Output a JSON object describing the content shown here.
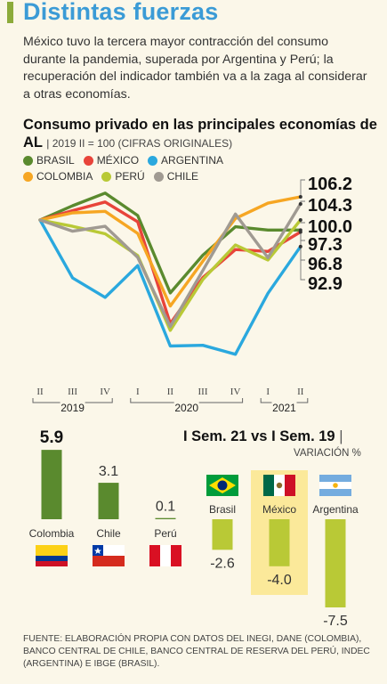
{
  "header": {
    "title": "Distintas fuerzas",
    "intro": "México tuvo la tercera mayor contracción del consumo durante la pandemia, superada por Argentina y Perú; la recuperación del indicador también va a la zaga al considerar a otras economías."
  },
  "colors": {
    "brasil": "#5a8a2e",
    "mexico": "#e8443a",
    "argentina": "#2aa8de",
    "colombia": "#f6a623",
    "peru": "#b9c936",
    "chile": "#a09a92",
    "accent_green": "#8cab3a",
    "headline_blue": "#3b9bd6",
    "mexico_highlight": "#fbe99a"
  },
  "chart_data": [
    {
      "type": "line",
      "title": "Consumo privado en las principales economías de AL",
      "subtitle": "2019 II = 100 (CIFRAS ORIGINALES)",
      "x": [
        "II",
        "III",
        "IV",
        "I",
        "II",
        "III",
        "IV",
        "I",
        "II"
      ],
      "year_labels": [
        {
          "label": "2019",
          "start": 0,
          "end": 2
        },
        {
          "label": "2020",
          "start": 3,
          "end": 6
        },
        {
          "label": "2021",
          "start": 7,
          "end": 8
        }
      ],
      "series": [
        {
          "name": "BRASIL",
          "key": "brasil",
          "values": [
            100,
            103.8,
            107.2,
            101.2,
            80.5,
            90.6,
            98.2,
            97.3,
            97.3
          ]
        },
        {
          "name": "MÉXICO",
          "key": "mexico",
          "values": [
            100,
            102.5,
            104.8,
            99.5,
            72.3,
            84.6,
            92.1,
            91.6,
            96.8
          ]
        },
        {
          "name": "ARGENTINA",
          "key": "argentina",
          "values": [
            100,
            84.5,
            79.3,
            87.8,
            66.3,
            66.5,
            64.1,
            80.4,
            92.9
          ]
        },
        {
          "name": "COLOMBIA",
          "key": "colombia",
          "values": [
            100,
            101.9,
            102.3,
            96.4,
            77.0,
            89.0,
            100.4,
            104.5,
            106.2
          ]
        },
        {
          "name": "PERÚ",
          "key": "peru",
          "values": [
            100,
            98.3,
            96.3,
            90.5,
            70.5,
            84.1,
            93.3,
            89.3,
            100.0
          ]
        },
        {
          "name": "CHILE",
          "key": "chile",
          "values": [
            100,
            97.0,
            98.3,
            90.0,
            71.5,
            86.5,
            101.6,
            89.9,
            104.3
          ]
        }
      ],
      "end_labels": [
        "106.2",
        "104.3",
        "100.0",
        "97.3",
        "96.8",
        "92.9"
      ],
      "ylim": [
        60,
        110
      ],
      "grid": false,
      "legend": "top-left"
    },
    {
      "type": "bar",
      "title": "I Sem. 21 vs I Sem. 19",
      "subtitle": "VARIACIÓN %",
      "categories": [
        "Colombia",
        "Chile",
        "Perú",
        "Brasil",
        "México",
        "Argentina"
      ],
      "values": [
        5.9,
        3.1,
        0.1,
        -2.6,
        -4.0,
        -7.5
      ],
      "value_labels": [
        "5.9",
        "3.1",
        "0.1",
        "-2.6",
        "-4.0",
        "-7.5"
      ],
      "highlight": "México",
      "ylim": [
        -8,
        7
      ]
    }
  ],
  "footer": {
    "source": "FUENTE: ELABORACIÓN PROPIA CON DATOS DEL INEGI, DANE (COLOMBIA), BANCO CENTRAL DE CHILE, BANCO CENTRAL DE RESERVA DEL PERÚ, INDEC (ARGENTINA) E IBGE (BRASIL)."
  }
}
